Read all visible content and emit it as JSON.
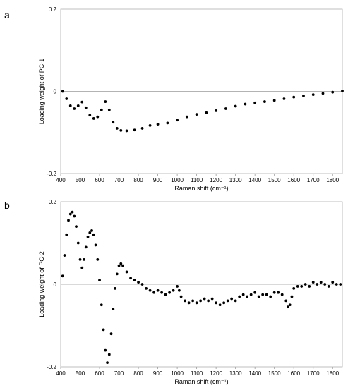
{
  "chart_data": [
    {
      "panel": "a",
      "type": "scatter",
      "xlabel": "Raman shift (cm⁻¹)",
      "ylabel": "Loading weight of PC-1",
      "xlim": [
        400,
        1850
      ],
      "ylim": [
        -0.2,
        0.2
      ],
      "xticks": [
        400,
        500,
        600,
        700,
        800,
        900,
        1000,
        1100,
        1200,
        1300,
        1400,
        1500,
        1600,
        1700,
        1800
      ],
      "yticks": [
        -0.2,
        0,
        0.2
      ],
      "ytick_labels": [
        "-0.2",
        "0",
        "0.2"
      ],
      "grid": false,
      "legend": "none",
      "marker_color": "#000000",
      "x": [
        410,
        430,
        450,
        470,
        490,
        510,
        530,
        550,
        570,
        590,
        610,
        630,
        650,
        670,
        690,
        710,
        740,
        780,
        820,
        860,
        900,
        950,
        1000,
        1050,
        1100,
        1150,
        1200,
        1250,
        1300,
        1350,
        1400,
        1450,
        1500,
        1550,
        1600,
        1650,
        1700,
        1750,
        1800,
        1850
      ],
      "y": [
        0,
        -0.018,
        -0.035,
        -0.042,
        -0.035,
        -0.026,
        -0.04,
        -0.058,
        -0.066,
        -0.062,
        -0.045,
        -0.025,
        -0.045,
        -0.075,
        -0.09,
        -0.095,
        -0.096,
        -0.094,
        -0.09,
        -0.083,
        -0.08,
        -0.077,
        -0.07,
        -0.062,
        -0.056,
        -0.052,
        -0.047,
        -0.042,
        -0.036,
        -0.031,
        -0.028,
        -0.025,
        -0.022,
        -0.018,
        -0.014,
        -0.011,
        -0.008,
        -0.005,
        -0.002,
        0.001
      ]
    },
    {
      "panel": "b",
      "type": "scatter",
      "xlabel": "Raman shift (cm⁻¹)",
      "ylabel": "Loading weight of PC-2",
      "xlim": [
        400,
        1850
      ],
      "ylim": [
        -0.2,
        0.2
      ],
      "xticks": [
        400,
        500,
        600,
        700,
        800,
        900,
        1000,
        1100,
        1200,
        1300,
        1400,
        1500,
        1600,
        1700,
        1800
      ],
      "yticks": [
        -0.2,
        0,
        0.2
      ],
      "ytick_labels": [
        "-0.2",
        "0",
        "0.2"
      ],
      "grid": false,
      "legend": "none",
      "marker_color": "#000000",
      "x": [
        410,
        420,
        430,
        440,
        450,
        460,
        470,
        480,
        490,
        500,
        510,
        520,
        530,
        540,
        550,
        560,
        570,
        580,
        590,
        600,
        610,
        620,
        630,
        640,
        650,
        660,
        670,
        680,
        690,
        700,
        710,
        720,
        740,
        760,
        780,
        800,
        820,
        840,
        860,
        880,
        900,
        920,
        940,
        960,
        980,
        1000,
        1010,
        1020,
        1040,
        1060,
        1080,
        1100,
        1120,
        1140,
        1160,
        1180,
        1200,
        1220,
        1240,
        1260,
        1280,
        1300,
        1320,
        1340,
        1360,
        1380,
        1400,
        1420,
        1440,
        1460,
        1480,
        1500,
        1520,
        1540,
        1560,
        1570,
        1580,
        1590,
        1600,
        1620,
        1640,
        1660,
        1680,
        1700,
        1720,
        1740,
        1760,
        1780,
        1800,
        1820,
        1840
      ],
      "y": [
        0.02,
        0.07,
        0.12,
        0.155,
        0.17,
        0.175,
        0.165,
        0.14,
        0.1,
        0.06,
        0.04,
        0.06,
        0.09,
        0.115,
        0.125,
        0.13,
        0.12,
        0.095,
        0.06,
        0.01,
        -0.05,
        -0.11,
        -0.16,
        -0.19,
        -0.17,
        -0.12,
        -0.06,
        -0.01,
        0.025,
        0.045,
        0.05,
        0.045,
        0.03,
        0.015,
        0.01,
        0.005,
        0.0,
        -0.01,
        -0.015,
        -0.02,
        -0.015,
        -0.02,
        -0.025,
        -0.02,
        -0.015,
        -0.005,
        -0.015,
        -0.03,
        -0.04,
        -0.045,
        -0.04,
        -0.045,
        -0.04,
        -0.035,
        -0.04,
        -0.035,
        -0.045,
        -0.05,
        -0.045,
        -0.04,
        -0.035,
        -0.04,
        -0.03,
        -0.025,
        -0.03,
        -0.025,
        -0.02,
        -0.03,
        -0.025,
        -0.025,
        -0.03,
        -0.02,
        -0.02,
        -0.025,
        -0.04,
        -0.055,
        -0.05,
        -0.03,
        -0.01,
        -0.005,
        -0.005,
        0.0,
        -0.005,
        0.005,
        0.0,
        0.005,
        0.0,
        -0.005,
        0.005,
        0.0,
        0.0
      ]
    }
  ]
}
